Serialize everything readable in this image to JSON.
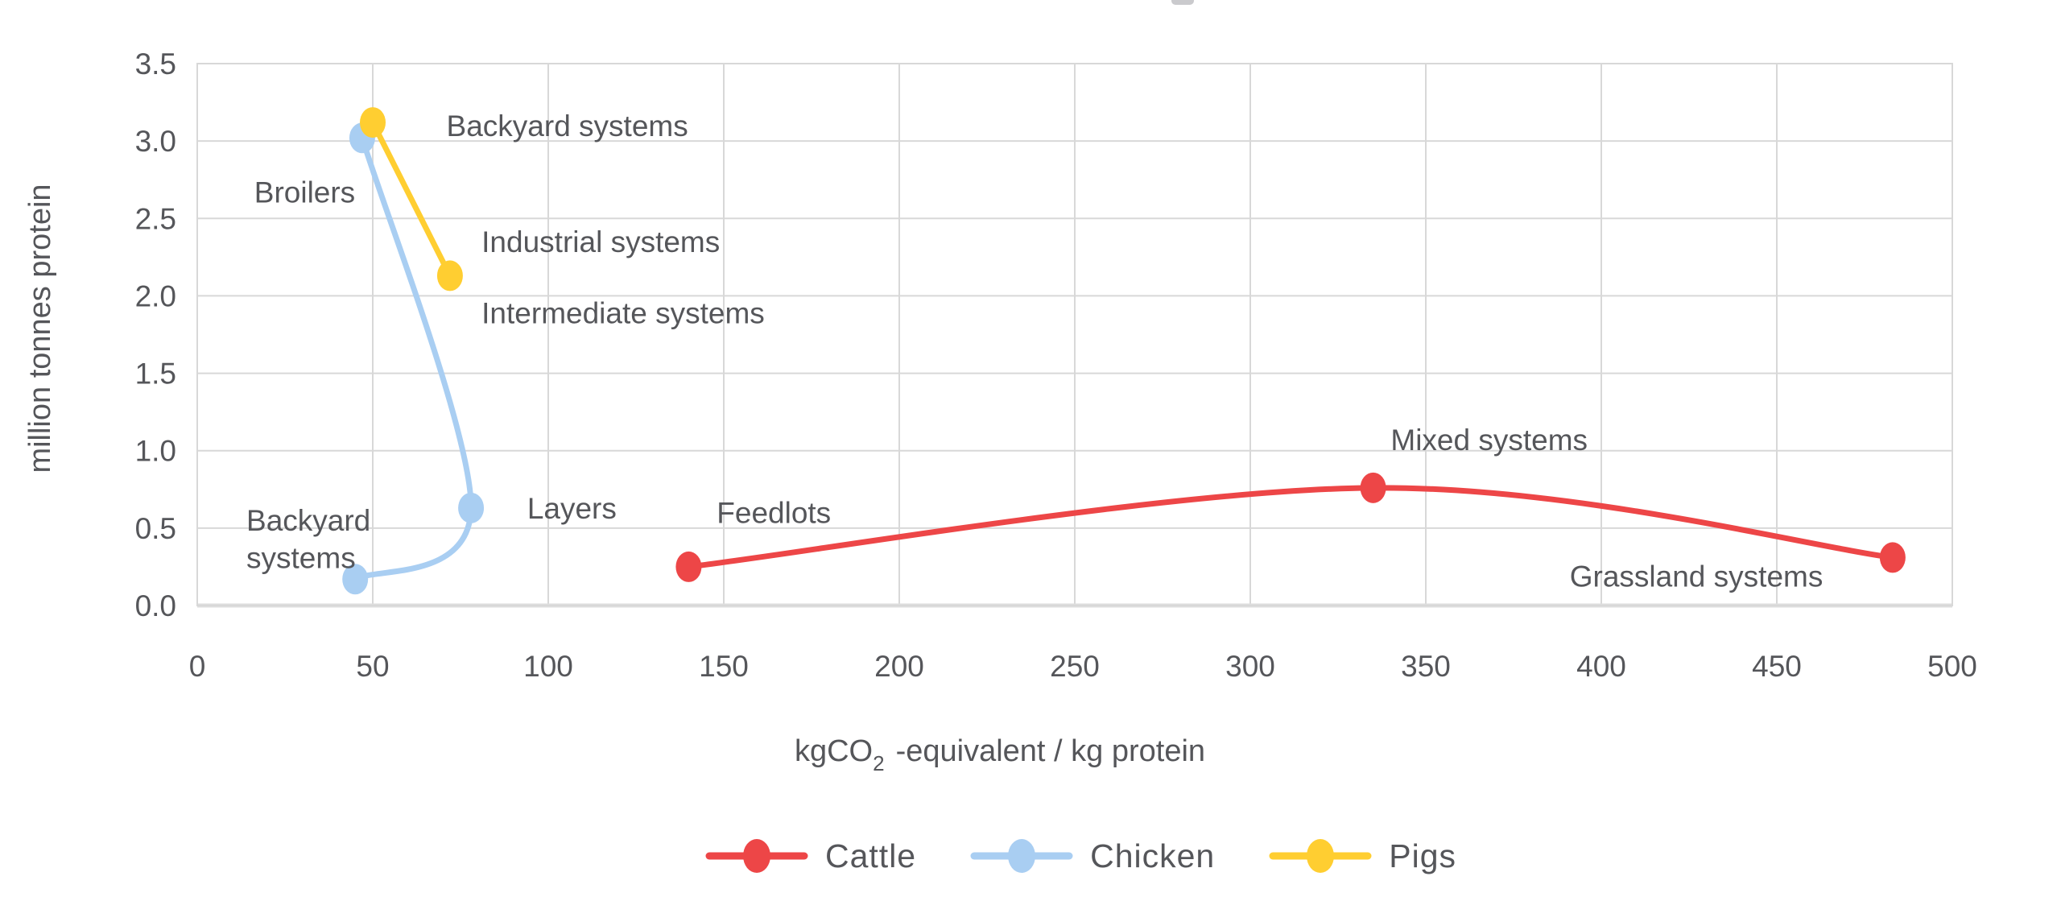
{
  "chart_data": {
    "type": "scatter",
    "title": "",
    "xlabel": {
      "pre": "kgCO",
      "sub": "2",
      "post": "-equivalent / kg protein"
    },
    "ylabel": "million tonnes protein",
    "xlim": [
      0,
      500
    ],
    "ylim": [
      0,
      3.5
    ],
    "x_ticks": [
      0,
      50,
      100,
      150,
      200,
      250,
      300,
      350,
      400,
      450,
      500
    ],
    "y_ticks": [
      0,
      0.5,
      1.0,
      1.5,
      2.0,
      2.5,
      3.0,
      3.5
    ],
    "grid": true,
    "legend_position": "bottom-center",
    "series": [
      {
        "name": "Cattle",
        "color": "#ED4647",
        "points": [
          {
            "x": 140,
            "y": 0.25,
            "label": "Feedlots"
          },
          {
            "x": 335,
            "y": 0.76,
            "label": "Mixed systems"
          },
          {
            "x": 483,
            "y": 0.31,
            "label": "Grassland systems"
          }
        ]
      },
      {
        "name": "Chicken",
        "color": "#A9CEF2",
        "points": [
          {
            "x": 47,
            "y": 3.02,
            "label": "Broilers"
          },
          {
            "x": 78,
            "y": 0.63,
            "label": "Layers"
          },
          {
            "x": 45,
            "y": 0.17,
            "label": "Backyard systems"
          }
        ]
      },
      {
        "name": "Pigs",
        "color": "#FFCE31",
        "points": [
          {
            "x": 50,
            "y": 3.12,
            "label": "Backyard systems"
          },
          {
            "x": 72,
            "y": 2.13,
            "label": "Industrial systems / Intermediate systems"
          }
        ]
      }
    ],
    "annotations": [
      {
        "text": "Backyard systems",
        "x": 71,
        "y": 3.1,
        "anchor": "start"
      },
      {
        "text": "Broilers",
        "x": 45,
        "y": 2.67,
        "anchor": "end"
      },
      {
        "text": "Industrial systems",
        "x": 81,
        "y": 2.35,
        "anchor": "start"
      },
      {
        "text": "Intermediate systems",
        "x": 81,
        "y": 1.89,
        "anchor": "start"
      },
      {
        "text": "Backyard\nsystems",
        "x": 14,
        "y": 0.55,
        "anchor": "start"
      },
      {
        "text": "Layers",
        "x": 94,
        "y": 0.63,
        "anchor": "start"
      },
      {
        "text": "Feedlots",
        "x": 148,
        "y": 0.6,
        "anchor": "start"
      },
      {
        "text": "Mixed systems",
        "x": 340,
        "y": 1.07,
        "anchor": "start"
      },
      {
        "text": "Grassland systems",
        "x": 391,
        "y": 0.19,
        "anchor": "start"
      }
    ],
    "style": {
      "grid_color": "#d8d8d8",
      "baseline_color": "#dedede",
      "text_color": "#55565a",
      "background": "#ffffff"
    }
  }
}
